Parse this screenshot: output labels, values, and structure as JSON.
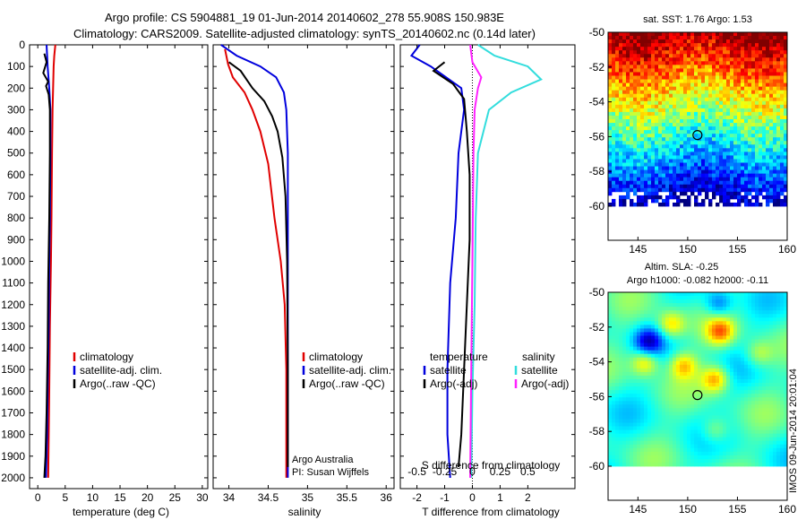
{
  "header": {
    "line1": "Argo profile: CS 5904881_19 01-Jun-2014 20140602_278 55.908S 150.983E",
    "line2": "Climatology: CARS2009. Satellite-adjusted climatology: synTS_20140602.nc (0.14d later)"
  },
  "side_stamp": "IMOS 09-Jun-2014 20:01:04",
  "chart_data": [
    {
      "type": "line",
      "id": "temperature",
      "xlabel": "temperature (deg C)",
      "ylabel": "",
      "xlim": [
        -1.5,
        31
      ],
      "ylim": [
        0,
        2050
      ],
      "y_inverted": true,
      "xticks": [
        0,
        5,
        10,
        15,
        20,
        25,
        30
      ],
      "yticks": [
        0,
        100,
        200,
        300,
        400,
        500,
        600,
        700,
        800,
        900,
        1000,
        1100,
        1200,
        1300,
        1400,
        1500,
        1600,
        1700,
        1800,
        1900,
        2000
      ],
      "legend": {
        "position": "middle-right",
        "entries": [
          "climatology",
          "satellite-adj. clim.",
          "Argo(..raw -QC)"
        ]
      },
      "series": [
        {
          "name": "climatology",
          "color": "#e00000",
          "x": [
            3.2,
            3.0,
            2.9,
            2.8,
            2.7,
            2.6,
            2.5,
            2.4,
            2.2,
            2.1,
            2.0,
            1.9
          ],
          "y": [
            0,
            50,
            100,
            200,
            300,
            500,
            800,
            1000,
            1300,
            1600,
            1800,
            2000
          ]
        },
        {
          "name": "satellite-adj. clim.",
          "color": "#0000dd",
          "x": [
            1.6,
            1.7,
            1.8,
            2.1,
            2.3,
            2.3,
            2.2,
            2.1,
            2.0,
            1.8,
            1.7,
            1.5
          ],
          "y": [
            0,
            50,
            100,
            200,
            300,
            500,
            800,
            1000,
            1300,
            1600,
            1800,
            2000
          ]
        },
        {
          "name": "Argo(..raw -QC)",
          "color": "#000000",
          "x": [
            1.2,
            1.6,
            1.0,
            1.9,
            1.5,
            2.0,
            2.2,
            2.2,
            2.1,
            1.9,
            1.8,
            1.6,
            1.4,
            1.2
          ],
          "y": [
            40,
            80,
            130,
            170,
            190,
            230,
            300,
            500,
            800,
            1100,
            1400,
            1700,
            1900,
            2000
          ]
        }
      ]
    },
    {
      "type": "line",
      "id": "salinity",
      "xlabel": "salinity",
      "xlim": [
        33.8,
        36.1
      ],
      "ylim": [
        0,
        2050
      ],
      "y_inverted": true,
      "xticks": [
        34,
        34.5,
        35,
        35.5,
        36
      ],
      "legend": {
        "position": "middle-right",
        "entries": [
          "climatology",
          "satellite-adj. clim.",
          "Argo(..raw -QC)"
        ]
      },
      "series": [
        {
          "name": "climatology",
          "color": "#e00000",
          "x": [
            33.95,
            33.99,
            34.05,
            34.2,
            34.3,
            34.4,
            34.5,
            34.58,
            34.66,
            34.71,
            34.73,
            34.73
          ],
          "y": [
            20,
            90,
            150,
            220,
            300,
            400,
            550,
            800,
            1000,
            1200,
            1500,
            2000
          ]
        },
        {
          "name": "satellite-adj. clim.",
          "color": "#0000dd",
          "x": [
            33.9,
            34.1,
            34.4,
            34.6,
            34.7,
            34.73,
            34.75,
            34.75,
            34.75,
            34.75
          ],
          "y": [
            0,
            50,
            100,
            150,
            220,
            300,
            500,
            800,
            1200,
            2000
          ]
        },
        {
          "name": "Argo(..raw -QC)",
          "color": "#000000",
          "x": [
            34.0,
            34.15,
            34.3,
            34.45,
            34.55,
            34.62,
            34.68,
            34.72,
            34.74,
            34.75,
            34.75
          ],
          "y": [
            80,
            120,
            200,
            260,
            330,
            400,
            520,
            700,
            1000,
            1500,
            1950
          ]
        }
      ],
      "annotations": [
        "Argo Australia",
        "PI: Susan Wijffels"
      ]
    },
    {
      "type": "line",
      "id": "difference",
      "xlabel": "T difference from climatology",
      "x2label": "S difference from climatology",
      "xlim": [
        -2.6,
        3.7
      ],
      "x2lim": [
        -0.65,
        0.925
      ],
      "ylim": [
        0,
        2050
      ],
      "y_inverted": true,
      "xticks": [
        -2,
        -1,
        0,
        1,
        2
      ],
      "x2ticks": [
        -0.5,
        -0.25,
        0,
        0.25,
        0.5
      ],
      "x2ticklabels": [
        "-0.5",
        "-0.25",
        "0",
        "0.25",
        "0.5"
      ],
      "legend_temperature": {
        "title": "temperature",
        "entries": [
          "satellite",
          "Argo(-adj)"
        ]
      },
      "legend_salinity": {
        "title": "salinity",
        "entries": [
          "satellite",
          "Argo(-adj)"
        ]
      },
      "series": [
        {
          "name": "satellite",
          "group": "temperature",
          "color": "#0000dd",
          "x": [
            -1.9,
            -2.2,
            -1.5,
            -0.4,
            -0.3,
            -0.5,
            -0.6,
            -0.8,
            -0.9,
            -0.9,
            -0.8
          ],
          "y": [
            0,
            50,
            100,
            200,
            300,
            500,
            800,
            1100,
            1500,
            1800,
            2000
          ]
        },
        {
          "name": "Argo(-adj)",
          "group": "temperature",
          "color": "#000000",
          "x": [
            -1.0,
            -1.4,
            -0.7,
            -0.3,
            -0.2,
            -0.1,
            -0.1,
            -0.2,
            -0.3,
            -0.4,
            -0.5
          ],
          "y": [
            80,
            120,
            180,
            250,
            400,
            600,
            900,
            1200,
            1500,
            1800,
            1950
          ]
        },
        {
          "name": "satellite",
          "group": "salinity",
          "color": "#33dddd",
          "x": [
            0.05,
            0.2,
            0.5,
            0.62,
            0.35,
            0.15,
            0.05,
            0.03,
            0.02,
            0.0,
            -0.01
          ],
          "y": [
            0,
            50,
            100,
            160,
            220,
            300,
            500,
            800,
            1200,
            1600,
            2000
          ]
        },
        {
          "name": "Argo(-adj)",
          "group": "salinity",
          "color": "#ff22ff",
          "x": [
            -0.02,
            0.0,
            0.08,
            0.05,
            0.02,
            0.01,
            0.0,
            -0.01,
            -0.02
          ],
          "y": [
            0,
            80,
            150,
            200,
            300,
            500,
            1000,
            1500,
            2000
          ]
        }
      ]
    },
    {
      "type": "heatmap",
      "id": "sst_map",
      "title": "sat. SST: 1.76 Argo: 1.53",
      "xlim": [
        142,
        160
      ],
      "ylim": [
        -60,
        -50
      ],
      "xticks": [
        145,
        150,
        155,
        160
      ],
      "yticks": [
        -50,
        -52,
        -54,
        -56,
        -58,
        -60
      ],
      "marker": {
        "lon": 150.983,
        "lat": -55.908
      }
    },
    {
      "type": "heatmap",
      "id": "sla_map",
      "title": "Altim. SLA: -0.25",
      "subtitle": "Argo h1000: -0.082 h2000: -0.11",
      "xlim": [
        142,
        160
      ],
      "ylim": [
        -60,
        -50
      ],
      "xticks": [
        145,
        150,
        155,
        160
      ],
      "yticks": [
        -50,
        -52,
        -54,
        -56,
        -58,
        -60
      ],
      "marker": {
        "lon": 150.983,
        "lat": -55.908
      }
    }
  ]
}
